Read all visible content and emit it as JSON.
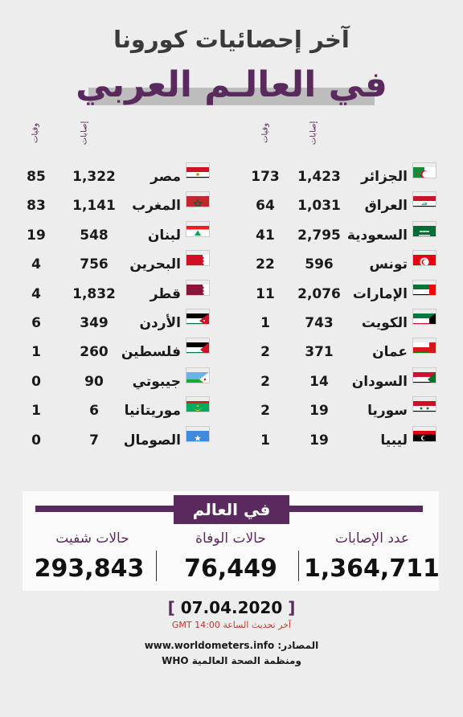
{
  "header": {
    "title_line1": "آخر إحصائيات كورونا",
    "title_line2": "في العالـم العربي"
  },
  "column_headers": {
    "cases": "إصابات",
    "deaths": "وفيات"
  },
  "right_column": [
    {
      "country": "الجزائر",
      "cases": "1,423",
      "deaths": "173",
      "flag": "algeria-flag"
    },
    {
      "country": "العراق",
      "cases": "1,031",
      "deaths": "64",
      "flag": "iraq-flag"
    },
    {
      "country": "السعودية",
      "cases": "2,795",
      "deaths": "41",
      "flag": "saudi-flag"
    },
    {
      "country": "تونس",
      "cases": "596",
      "deaths": "22",
      "flag": "tunisia-flag"
    },
    {
      "country": "الإمارات",
      "cases": "2,076",
      "deaths": "11",
      "flag": "uae-flag"
    },
    {
      "country": "الكويت",
      "cases": "743",
      "deaths": "1",
      "flag": "kuwait-flag"
    },
    {
      "country": "عمان",
      "cases": "371",
      "deaths": "2",
      "flag": "oman-flag"
    },
    {
      "country": "السودان",
      "cases": "14",
      "deaths": "2",
      "flag": "sudan-flag"
    },
    {
      "country": "سوريا",
      "cases": "19",
      "deaths": "2",
      "flag": "syria-flag"
    },
    {
      "country": "ليبيا",
      "cases": "19",
      "deaths": "1",
      "flag": "libya-flag"
    }
  ],
  "left_column": [
    {
      "country": "مصر",
      "cases": "1,322",
      "deaths": "85",
      "flag": "egypt-flag"
    },
    {
      "country": "المغرب",
      "cases": "1,141",
      "deaths": "83",
      "flag": "morocco-flag"
    },
    {
      "country": "لبنان",
      "cases": "548",
      "deaths": "19",
      "flag": "lebanon-flag"
    },
    {
      "country": "البحرين",
      "cases": "756",
      "deaths": "4",
      "flag": "bahrain-flag"
    },
    {
      "country": "قطر",
      "cases": "1,832",
      "deaths": "4",
      "flag": "qatar-flag"
    },
    {
      "country": "الأردن",
      "cases": "349",
      "deaths": "6",
      "flag": "jordan-flag"
    },
    {
      "country": "فلسطين",
      "cases": "260",
      "deaths": "1",
      "flag": "palestine-flag"
    },
    {
      "country": "جيبوتي",
      "cases": "90",
      "deaths": "0",
      "flag": "djibouti-flag"
    },
    {
      "country": "موريتانيا",
      "cases": "6",
      "deaths": "1",
      "flag": "mauritania-flag"
    },
    {
      "country": "الصومال",
      "cases": "7",
      "deaths": "0",
      "flag": "somalia-flag"
    }
  ],
  "world": {
    "title": "في العالم",
    "total_cases_label": "عدد الإصابات",
    "total_cases": "1,364,711",
    "deaths_label": "حالات الوفاة",
    "deaths": "76,449",
    "recovered_label": "حالات شفيت",
    "recovered": "293,843"
  },
  "footer": {
    "date": "07.04.2020",
    "bracket_open": "[",
    "bracket_close": "]",
    "update_text": "آخر تحديث الساعة 14:00 GMT",
    "source_label": "المصادر:",
    "source_1": "www.worldometers.info",
    "source_2": "ومنظمة الصحة العالمية WHO"
  },
  "colors": {
    "accent": "#5a2a5e",
    "background": "#ededed",
    "update_red": "#c0392b"
  }
}
